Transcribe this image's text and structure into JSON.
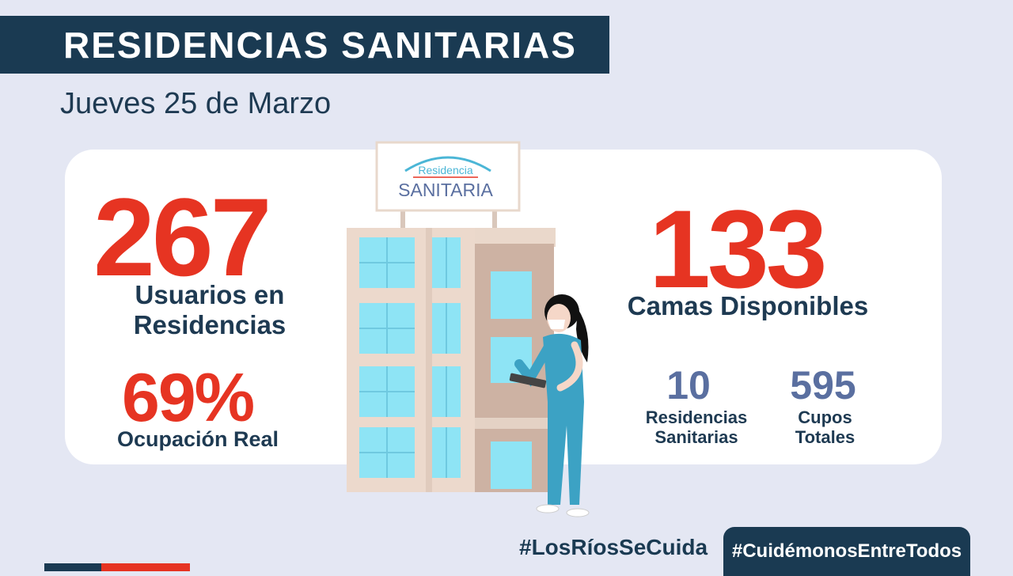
{
  "header": {
    "title": "RESIDENCIAS SANITARIAS",
    "date": "Jueves 25 de Marzo"
  },
  "sign": {
    "line1": "Residencia",
    "line2": "SANITARIA"
  },
  "stats": {
    "usuarios": {
      "value": "267",
      "label_line1": "Usuarios en",
      "label_line2": "Residencias"
    },
    "ocupacion": {
      "value": "69%",
      "label": "Ocupación Real"
    },
    "camas": {
      "value": "133",
      "label": "Camas Disponibles"
    },
    "residencias": {
      "value": "10",
      "label_line1": "Residencias",
      "label_line2": "Sanitarias"
    },
    "cupos": {
      "value": "595",
      "label_line1": "Cupos",
      "label_line2": "Totales"
    }
  },
  "footer": {
    "hashtag_left": "#LosRíosSeCuida",
    "hashtag_right": "#CuidémonosEntreTodos"
  },
  "colors": {
    "navy": "#1a3a52",
    "red": "#e63422",
    "slate_blue": "#5a6fa0",
    "background": "#e4e7f3"
  }
}
